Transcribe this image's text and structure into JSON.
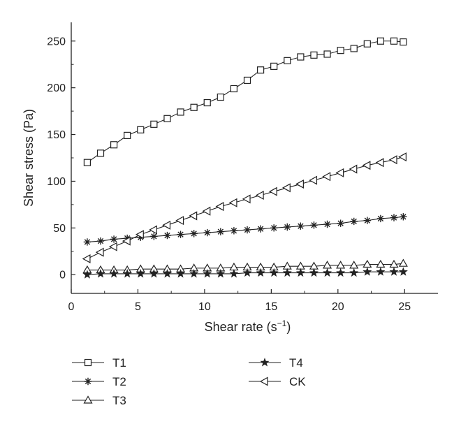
{
  "chart_data": {
    "type": "line",
    "title": "",
    "xlabel": {
      "base": "Shear rate (s",
      "sup": "−1",
      "close": ")"
    },
    "ylabel": "Shear stress (Pa)",
    "xlim": [
      0,
      27.5
    ],
    "ylim": [
      -20,
      270
    ],
    "xticks": [
      0,
      5,
      10,
      15,
      20,
      25
    ],
    "yticks": [
      0,
      50,
      100,
      150,
      200,
      250
    ],
    "grid": false,
    "legend_position": "bottom",
    "x": [
      1.2,
      2.2,
      3.2,
      4.2,
      5.2,
      6.2,
      7.2,
      8.2,
      9.2,
      10.2,
      11.2,
      12.2,
      13.2,
      14.2,
      15.2,
      16.2,
      17.2,
      18.2,
      19.2,
      20.2,
      21.2,
      22.2,
      23.2,
      24.2,
      24.9
    ],
    "series": [
      {
        "name": "T1",
        "marker": "square",
        "values": [
          120,
          130,
          139,
          149,
          155,
          161,
          167,
          174,
          179,
          184,
          190,
          199,
          208,
          219,
          223,
          229,
          233,
          235,
          236,
          240,
          242,
          247,
          250,
          250,
          249
        ]
      },
      {
        "name": "T2",
        "marker": "asterisk",
        "values": [
          35,
          36,
          38,
          39,
          40,
          41,
          42,
          43,
          44,
          45,
          46,
          47,
          48,
          49,
          50,
          51,
          52,
          53,
          54,
          55,
          57,
          58,
          60,
          61,
          62
        ]
      },
      {
        "name": "T3",
        "marker": "triangle-up",
        "values": [
          5,
          5,
          5,
          5,
          6,
          6,
          6,
          6,
          7,
          7,
          7,
          8,
          8,
          8,
          8,
          9,
          9,
          9,
          10,
          10,
          10,
          11,
          11,
          11,
          12
        ]
      },
      {
        "name": "T4",
        "marker": "star",
        "values": [
          0,
          1,
          1,
          1,
          1,
          1,
          1,
          1,
          1,
          1,
          1,
          1,
          2,
          2,
          2,
          2,
          2,
          2,
          2,
          2,
          2,
          3,
          3,
          3,
          3
        ]
      },
      {
        "name": "CK",
        "marker": "triangle-left",
        "values": [
          17,
          24,
          30,
          36,
          43,
          48,
          53,
          58,
          63,
          68,
          73,
          77,
          81,
          85,
          89,
          93,
          97,
          101,
          105,
          109,
          113,
          117,
          120,
          123,
          126
        ]
      }
    ]
  },
  "colors": {
    "line": "#222222",
    "marker_fill": "#ffffff",
    "background": "#ffffff"
  }
}
